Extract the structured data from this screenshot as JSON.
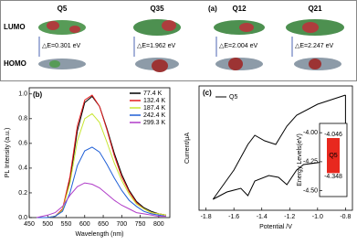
{
  "panel_a": {
    "label": "(a)",
    "molecules": [
      "Q5",
      "Q35",
      "Q12",
      "Q21"
    ],
    "rows": [
      "LUMO",
      "HOMO"
    ],
    "gaps": [
      "△E=0.301 eV",
      "△E=1.962 eV",
      "△E=2.004 eV",
      "△E=2.247 eV"
    ]
  },
  "chart_data": [
    {
      "type": "line",
      "label": "(b)",
      "x_label": "Wavelength (nm)",
      "y_label": "PL Intensity (a.u.)",
      "x": [
        470,
        500,
        520,
        540,
        560,
        580,
        600,
        620,
        640,
        660,
        680,
        700,
        720,
        740,
        760,
        780,
        800,
        820
      ],
      "series": [
        {
          "name": "77.4 K",
          "color": "#000000",
          "values": [
            0,
            0,
            0.01,
            0.06,
            0.3,
            0.7,
            0.93,
            0.98,
            0.9,
            0.72,
            0.52,
            0.35,
            0.22,
            0.13,
            0.08,
            0.05,
            0.03,
            0.02
          ]
        },
        {
          "name": "132.4 K",
          "color": "#e41a1c",
          "values": [
            0,
            0,
            0.01,
            0.07,
            0.33,
            0.74,
            0.95,
            0.99,
            0.9,
            0.71,
            0.5,
            0.33,
            0.21,
            0.12,
            0.07,
            0.04,
            0.03,
            0.02
          ]
        },
        {
          "name": "187.4 K",
          "color": "#c8e632",
          "values": [
            0,
            0,
            0.01,
            0.06,
            0.28,
            0.62,
            0.8,
            0.84,
            0.77,
            0.61,
            0.44,
            0.3,
            0.19,
            0.11,
            0.07,
            0.04,
            0.03,
            0.02
          ]
        },
        {
          "name": "242.4 K",
          "color": "#1f5fd6",
          "values": [
            0,
            0,
            0.01,
            0.05,
            0.2,
            0.42,
            0.54,
            0.57,
            0.53,
            0.43,
            0.32,
            0.22,
            0.14,
            0.09,
            0.05,
            0.03,
            0.02,
            0.01
          ]
        },
        {
          "name": "299.3 K",
          "color": "#b03cc8",
          "values": [
            0,
            0.02,
            0.04,
            0.09,
            0.18,
            0.25,
            0.28,
            0.27,
            0.24,
            0.19,
            0.14,
            0.1,
            0.07,
            0.04,
            0.03,
            0.02,
            0.01,
            0.01
          ]
        }
      ],
      "xlim": [
        450,
        830
      ],
      "xticks": [
        450,
        500,
        550,
        600,
        650,
        700,
        750,
        800
      ],
      "ylim": [
        0,
        1.05
      ],
      "yticks": [
        {
          "value": 0,
          "label": "0.0"
        },
        {
          "value": 0.2,
          "label": "0.2"
        },
        {
          "value": 0.4,
          "label": "0.4"
        },
        {
          "value": 0.6,
          "label": "0.6"
        },
        {
          "value": 0.8,
          "label": "0.8"
        },
        {
          "value": 1,
          "label": "1.0"
        }
      ],
      "legend": "upper right"
    },
    {
      "type": "cv",
      "label": "(c)",
      "x_label": "Potential /V",
      "y_label": "Current/μA",
      "series": [
        {
          "name": "Q5",
          "color": "#000000",
          "x": [
            -0.8,
            -0.8,
            -1.0,
            -1.1,
            -1.15,
            -1.22,
            -1.28,
            -1.35,
            -1.45,
            -1.5,
            -1.55,
            -1.65,
            -1.75,
            -1.6,
            -1.5,
            -1.45,
            -1.38,
            -1.3,
            -1.22,
            -1.15,
            -1.0,
            -0.8
          ],
          "values": [
            3.1,
            -0.3,
            -0.6,
            -0.7,
            -1.0,
            -1.8,
            -1.4,
            -1.3,
            -1.6,
            -2.4,
            -2.0,
            -2.2,
            -2.6,
            -1.0,
            0.4,
            0.9,
            0.6,
            0.4,
            1.4,
            2.0,
            2.6,
            3.1
          ]
        }
      ],
      "xlim": [
        -1.85,
        -0.75
      ],
      "xticks": [
        -1.8,
        -1.6,
        -1.4,
        -1.2,
        {
          "value": -1,
          "label": "-1.0"
        },
        -0.8
      ],
      "ylim": [
        -3.2,
        3.6
      ],
      "legend": "upper left"
    },
    {
      "type": "range-bar",
      "y_label": "Energy Levels(eV)",
      "categories": [
        "Q5"
      ],
      "color": "#e8281e",
      "high": [
        -4.046
      ],
      "low": [
        -4.348
      ],
      "ylim": [
        -4.55,
        -3.92
      ],
      "yticks": [
        {
          "value": -4,
          "label": "-4.00"
        },
        {
          "value": -4.25,
          "label": "-4.25"
        },
        {
          "value": -4.5,
          "label": "-4.50"
        }
      ]
    }
  ]
}
